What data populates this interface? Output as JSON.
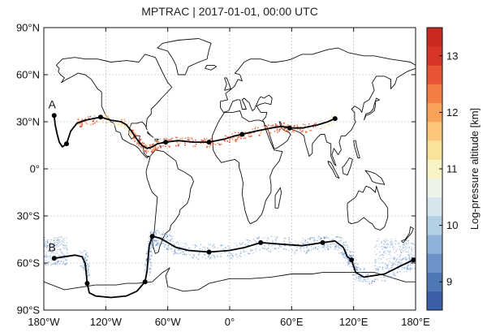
{
  "map": {
    "title": "MPTRAC | 2017-01-01, 00:00 UTC",
    "lon_ticks": [
      {
        "lon": -180,
        "label": "180°W"
      },
      {
        "lon": -120,
        "label": "120°W"
      },
      {
        "lon": -60,
        "label": "60°W"
      },
      {
        "lon": 0,
        "label": "0°"
      },
      {
        "lon": 60,
        "label": "60°E"
      },
      {
        "lon": 120,
        "label": "120°E"
      },
      {
        "lon": 180,
        "label": "180°E"
      }
    ],
    "lat_ticks": [
      {
        "lat": 90,
        "label": "90°N"
      },
      {
        "lat": 60,
        "label": "60°N"
      },
      {
        "lat": 30,
        "label": "30°N"
      },
      {
        "lat": 0,
        "label": "0°"
      },
      {
        "lat": -30,
        "label": "30°S"
      },
      {
        "lat": -60,
        "label": "60°S"
      },
      {
        "lat": -90,
        "label": "90°S"
      }
    ],
    "colorbar": {
      "label": "Log-pressure altitude [km]",
      "range": [
        8.5,
        13.5
      ],
      "ticks": [
        9,
        10,
        11,
        12,
        13
      ],
      "colors": [
        "#3b5fa6",
        "#4f78b7",
        "#6b93c7",
        "#8fb3d8",
        "#b4d0e5",
        "#d5e6ee",
        "#ecf3e6",
        "#f7f3c4",
        "#fbe29a",
        "#fcc77a",
        "#f9a35a",
        "#f37d43",
        "#e85535",
        "#d83526",
        "#c82a1f"
      ]
    },
    "trajectories": [
      {
        "label": "A",
        "label_pos": [
          -172,
          41
        ],
        "points": [
          [
            -170,
            34
          ],
          [
            -158,
            16
          ],
          [
            -125,
            33
          ],
          [
            -62,
            17
          ],
          [
            -20,
            17
          ],
          [
            12,
            22
          ],
          [
            58,
            26
          ],
          [
            102,
            32
          ]
        ],
        "path": [
          [
            -170,
            34
          ],
          [
            -169,
            28
          ],
          [
            -167,
            22
          ],
          [
            -165,
            17
          ],
          [
            -162,
            14
          ],
          [
            -158,
            16
          ],
          [
            -154,
            24
          ],
          [
            -148,
            29
          ],
          [
            -140,
            31
          ],
          [
            -125,
            33
          ],
          [
            -115,
            31
          ],
          [
            -105,
            30
          ],
          [
            -100,
            28
          ],
          [
            -95,
            24
          ],
          [
            -90,
            19
          ],
          [
            -85,
            15
          ],
          [
            -80,
            13
          ],
          [
            -75,
            14
          ],
          [
            -70,
            16
          ],
          [
            -62,
            17
          ],
          [
            -50,
            18
          ],
          [
            -35,
            17
          ],
          [
            -20,
            17
          ],
          [
            -5,
            19
          ],
          [
            5,
            21
          ],
          [
            12,
            22
          ],
          [
            25,
            24
          ],
          [
            40,
            26
          ],
          [
            50,
            27
          ],
          [
            58,
            26
          ],
          [
            70,
            26
          ],
          [
            85,
            28
          ],
          [
            95,
            30
          ],
          [
            102,
            32
          ]
        ]
      },
      {
        "label": "B",
        "label_pos": [
          -172,
          -50
        ],
        "points": [
          [
            -170,
            -57
          ],
          [
            -138,
            -73
          ],
          [
            -82,
            -72
          ],
          [
            -75,
            -43
          ],
          [
            -20,
            -53
          ],
          [
            30,
            -47
          ],
          [
            90,
            -47
          ],
          [
            118,
            -58
          ],
          [
            178,
            -58
          ]
        ],
        "path": [
          [
            -170,
            -57
          ],
          [
            -160,
            -56
          ],
          [
            -150,
            -55
          ],
          [
            -143,
            -56
          ],
          [
            -140,
            -60
          ],
          [
            -139,
            -66
          ],
          [
            -138,
            -73
          ],
          [
            -136,
            -79
          ],
          [
            -130,
            -81
          ],
          [
            -115,
            -82
          ],
          [
            -100,
            -81
          ],
          [
            -90,
            -78
          ],
          [
            -82,
            -72
          ],
          [
            -80,
            -65
          ],
          [
            -79,
            -57
          ],
          [
            -78,
            -49
          ],
          [
            -75,
            -43
          ],
          [
            -68,
            -44
          ],
          [
            -60,
            -47
          ],
          [
            -52,
            -50
          ],
          [
            -40,
            -52
          ],
          [
            -20,
            -53
          ],
          [
            0,
            -52
          ],
          [
            15,
            -50
          ],
          [
            30,
            -47
          ],
          [
            50,
            -48
          ],
          [
            70,
            -49
          ],
          [
            80,
            -48
          ],
          [
            90,
            -47
          ],
          [
            102,
            -46
          ],
          [
            110,
            -50
          ],
          [
            114,
            -56
          ],
          [
            118,
            -58
          ],
          [
            122,
            -66
          ],
          [
            130,
            -69
          ],
          [
            150,
            -67
          ],
          [
            165,
            -62
          ],
          [
            178,
            -58
          ]
        ]
      }
    ]
  }
}
